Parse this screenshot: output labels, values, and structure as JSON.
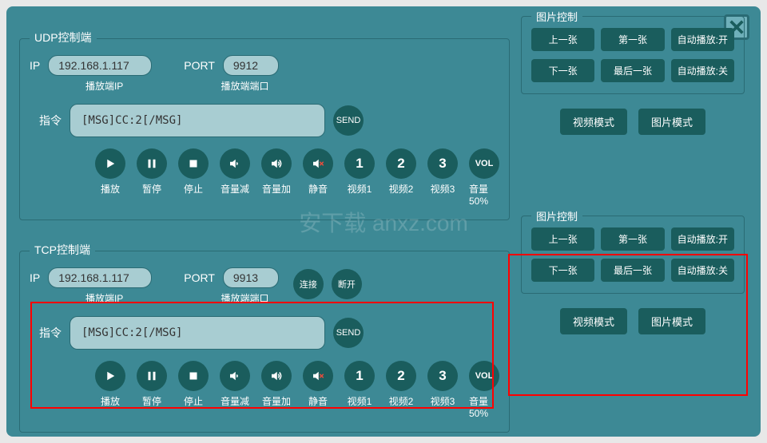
{
  "colors": {
    "panel": "#3d8995",
    "btn": "#1a5d5d",
    "border": "#2a6b74",
    "input": "#a8cdd2"
  },
  "close": {
    "name": "close"
  },
  "udp": {
    "title": "UDP控制端",
    "ip_label": "IP",
    "ip_value": "192.168.1.117",
    "ip_sub": "播放端IP",
    "port_label": "PORT",
    "port_value": "9912",
    "port_sub": "播放端端口",
    "cmd_label": "指令",
    "cmd_value": "[MSG]CC:2[/MSG]",
    "send": "SEND"
  },
  "tcp": {
    "title": "TCP控制端",
    "ip_label": "IP",
    "ip_value": "192.168.1.117",
    "ip_sub": "播放端IP",
    "port_label": "PORT",
    "port_value": "9913",
    "port_sub": "播放端端口",
    "connect": "连接",
    "disconnect": "断开",
    "cmd_label": "指令",
    "cmd_value": "[MSG]CC:2[/MSG]",
    "send": "SEND"
  },
  "circles": [
    {
      "name": "play",
      "label": "播放",
      "icon": "play"
    },
    {
      "name": "pause",
      "label": "暂停",
      "icon": "pause"
    },
    {
      "name": "stop",
      "label": "停止",
      "icon": "stop"
    },
    {
      "name": "vol-down",
      "label": "音量减",
      "icon": "voldown"
    },
    {
      "name": "vol-up",
      "label": "音量加",
      "icon": "volup"
    },
    {
      "name": "mute",
      "label": "静音",
      "icon": "mute"
    },
    {
      "name": "video1",
      "label": "视频1",
      "text": "1"
    },
    {
      "name": "video2",
      "label": "视频2",
      "text": "2"
    },
    {
      "name": "video3",
      "label": "视频3",
      "text": "3"
    },
    {
      "name": "vol50",
      "label": "音量50%",
      "text": "VOL"
    }
  ],
  "pic": {
    "title": "图片控制",
    "buttons": [
      {
        "name": "prev",
        "label": "上一张"
      },
      {
        "name": "first",
        "label": "第一张"
      },
      {
        "name": "auto-on",
        "label": "自动播放:开"
      },
      {
        "name": "next",
        "label": "下一张"
      },
      {
        "name": "last",
        "label": "最后一张"
      },
      {
        "name": "auto-off",
        "label": "自动播放:关"
      }
    ]
  },
  "modes": {
    "video": "视频模式",
    "image": "图片模式"
  },
  "watermark": "安下载 anxz.com"
}
